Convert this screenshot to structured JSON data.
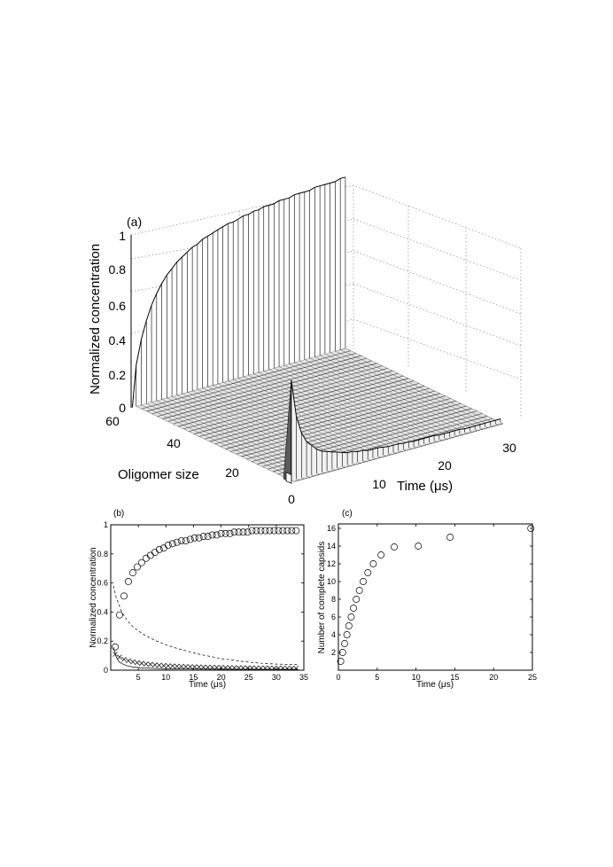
{
  "chart_data": [
    {
      "panel": "(a)",
      "type": "surface3d",
      "xlabel": "Time (μs)",
      "ylabel": "Oligomer size",
      "zlabel": "Normalized concentration",
      "xticks": [
        10,
        20,
        30
      ],
      "yticks": [
        0,
        20,
        40,
        60
      ],
      "zticks": [
        "0",
        "0.2",
        "0.4",
        "0.6",
        "0.8",
        "1"
      ],
      "xlim": [
        0,
        35
      ],
      "ylim": [
        0,
        60
      ],
      "zlim": [
        0,
        1
      ],
      "grid": true,
      "series": [
        {
          "oligomer_size": 60,
          "time": [
            0.8,
            1.6,
            2.4,
            3.2,
            4.0,
            4.8,
            5.6,
            6.4,
            7.2,
            8.0,
            8.8,
            9.6,
            10.4,
            11.2,
            12.0,
            12.8,
            13.6,
            14.4,
            15.2,
            16.0,
            16.8,
            17.6,
            18.4,
            19.2,
            20.0,
            20.8,
            21.6,
            22.4,
            23.2,
            24.0,
            24.8,
            25.6,
            26.4,
            27.2,
            28.0,
            28.8,
            29.6,
            30.4,
            31.2,
            32.0,
            32.8,
            33.6
          ],
          "values": [
            0.24,
            0.38,
            0.48,
            0.56,
            0.62,
            0.67,
            0.71,
            0.74,
            0.77,
            0.79,
            0.81,
            0.83,
            0.84,
            0.86,
            0.87,
            0.88,
            0.89,
            0.9,
            0.91,
            0.91,
            0.92,
            0.93,
            0.93,
            0.94,
            0.94,
            0.95,
            0.95,
            0.95,
            0.96,
            0.96,
            0.96,
            0.97,
            0.97,
            0.97,
            0.97,
            0.98,
            0.98,
            0.98,
            0.98,
            0.98,
            0.99,
            0.99
          ]
        },
        {
          "oligomer_size": 1,
          "time": [
            0.8,
            1.6,
            2.4,
            3.2,
            4.0,
            4.8,
            5.6,
            6.4,
            7.2,
            8.0,
            8.8,
            9.6,
            10.4,
            11.2,
            12.0,
            12.8,
            13.6,
            14.4,
            15.2,
            16.0,
            16.8,
            17.6,
            18.4,
            19.2,
            20.0,
            20.8,
            21.6,
            22.4,
            23.2,
            24.0,
            24.8,
            25.6,
            26.4,
            27.2,
            28.0,
            28.8,
            29.6,
            30.4,
            31.2,
            32.0,
            32.8,
            33.6
          ],
          "values": [
            0.58,
            0.36,
            0.26,
            0.2,
            0.17,
            0.14,
            0.12,
            0.11,
            0.1,
            0.09,
            0.08,
            0.07,
            0.07,
            0.06,
            0.06,
            0.05,
            0.05,
            0.05,
            0.045,
            0.04,
            0.04,
            0.04,
            0.035,
            0.035,
            0.03,
            0.03,
            0.03,
            0.03,
            0.03,
            0.025,
            0.025,
            0.025,
            0.025,
            0.025,
            0.02,
            0.02,
            0.02,
            0.02,
            0.02,
            0.02,
            0.02,
            0.02
          ]
        }
      ]
    },
    {
      "panel": "(b)",
      "type": "scatter",
      "xlabel": "Time (μs)",
      "ylabel": "Normalized concentration",
      "xlim": [
        0,
        35
      ],
      "ylim": [
        0,
        1
      ],
      "xticks": [
        5,
        10,
        15,
        20,
        25,
        30,
        35
      ],
      "yticks": [
        "0",
        "0.2",
        "0.4",
        "0.6",
        "0.8",
        "1"
      ],
      "series": [
        {
          "marker": "circle",
          "x": [
            0.8,
            1.6,
            2.4,
            3.2,
            4.0,
            4.8,
            5.6,
            6.4,
            7.2,
            8.0,
            8.8,
            9.6,
            10.4,
            11.2,
            12.0,
            12.8,
            13.6,
            14.4,
            15.2,
            16.0,
            16.8,
            17.6,
            18.4,
            19.2,
            20.0,
            20.8,
            21.6,
            22.4,
            23.2,
            24.0,
            24.8,
            25.6,
            26.4,
            27.2,
            28.0,
            28.8,
            29.6,
            30.4,
            31.2,
            32.0,
            32.8,
            33.6
          ],
          "y": [
            0.16,
            0.38,
            0.51,
            0.61,
            0.67,
            0.71,
            0.74,
            0.77,
            0.79,
            0.81,
            0.83,
            0.84,
            0.86,
            0.87,
            0.88,
            0.89,
            0.89,
            0.9,
            0.91,
            0.91,
            0.92,
            0.92,
            0.93,
            0.93,
            0.94,
            0.94,
            0.94,
            0.95,
            0.95,
            0.95,
            0.95,
            0.96,
            0.96,
            0.96,
            0.96,
            0.96,
            0.96,
            0.96,
            0.96,
            0.96,
            0.96,
            0.96
          ]
        },
        {
          "marker": "cross",
          "x": [
            0.8,
            1.6,
            2.4,
            3.2,
            4.0,
            4.8,
            5.6,
            6.4,
            7.2,
            8.0,
            8.8,
            9.6,
            10.4,
            11.2,
            12.0,
            12.8,
            13.6,
            14.4,
            15.2,
            16.0,
            16.8,
            17.6,
            18.4,
            19.2,
            20.0,
            20.8,
            21.6,
            22.4,
            23.2,
            24.0,
            24.8,
            25.6,
            26.4,
            27.2,
            28.0,
            28.8,
            29.6,
            30.4,
            31.2,
            32.0,
            32.8,
            33.6
          ],
          "y": [
            0.11,
            0.09,
            0.075,
            0.065,
            0.058,
            0.052,
            0.047,
            0.043,
            0.04,
            0.037,
            0.034,
            0.032,
            0.03,
            0.029,
            0.027,
            0.026,
            0.025,
            0.024,
            0.023,
            0.022,
            0.021,
            0.02,
            0.02,
            0.019,
            0.019,
            0.018,
            0.018,
            0.017,
            0.017,
            0.016,
            0.016,
            0.016,
            0.015,
            0.015,
            0.015,
            0.014,
            0.014,
            0.014,
            0.014,
            0.013,
            0.013,
            0.013
          ]
        },
        {
          "marker": "dashed-line",
          "x": [
            0.5,
            1,
            2,
            3,
            4,
            5,
            6,
            7,
            8,
            9,
            10,
            12,
            14,
            16,
            18,
            20,
            22,
            24,
            26,
            28,
            30,
            32,
            34
          ],
          "y": [
            0.58,
            0.5,
            0.4,
            0.34,
            0.3,
            0.27,
            0.245,
            0.225,
            0.205,
            0.19,
            0.175,
            0.15,
            0.13,
            0.11,
            0.095,
            0.08,
            0.07,
            0.06,
            0.052,
            0.046,
            0.042,
            0.04,
            0.038
          ]
        },
        {
          "marker": "solid-line",
          "x": [
            0.5,
            1,
            1.5,
            2,
            3,
            4,
            5,
            6,
            8,
            10,
            14,
            20,
            27,
            34
          ],
          "y": [
            0.16,
            0.09,
            0.06,
            0.045,
            0.03,
            0.022,
            0.018,
            0.015,
            0.012,
            0.01,
            0.008,
            0.007,
            0.006,
            0.006
          ]
        }
      ]
    },
    {
      "panel": "(c)",
      "type": "scatter",
      "xlabel": "Time (μs)",
      "ylabel": "Number of complete capsids",
      "xlim": [
        0,
        25
      ],
      "ylim": [
        0,
        16.5
      ],
      "xticks": [
        0,
        5,
        10,
        15,
        20,
        25
      ],
      "yticks": [
        2,
        4,
        6,
        8,
        10,
        12,
        14,
        16
      ],
      "series": [
        {
          "marker": "circle",
          "x": [
            0.3,
            0.55,
            0.8,
            1.1,
            1.35,
            1.65,
            1.95,
            2.3,
            2.7,
            3.2,
            3.8,
            4.5,
            5.5,
            7.2,
            10.3,
            14.4,
            24.8
          ],
          "y": [
            1,
            2,
            3,
            4,
            5,
            6,
            7,
            8,
            9,
            10,
            11,
            12,
            13,
            13.9,
            14,
            15,
            16
          ]
        }
      ]
    }
  ]
}
